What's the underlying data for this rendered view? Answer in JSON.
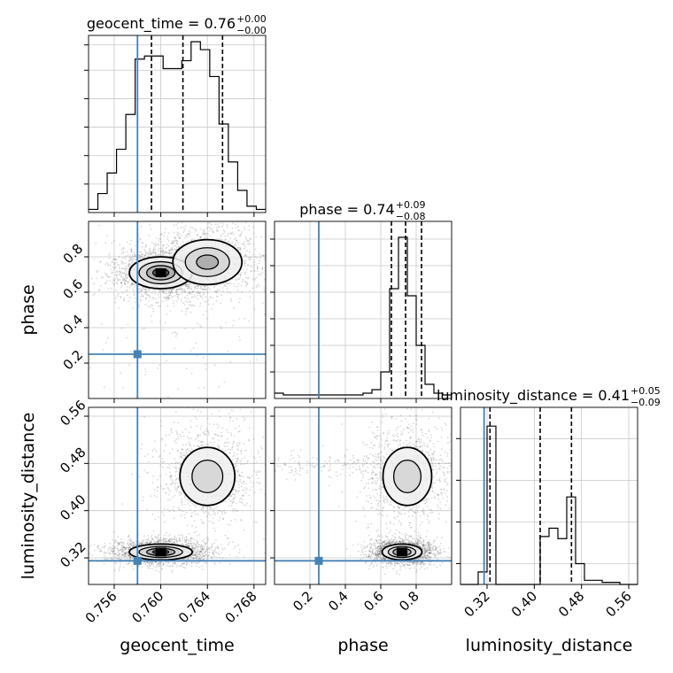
{
  "chart_data": {
    "type": "corner",
    "parameters": [
      "geocent_time",
      "phase",
      "luminosity_distance"
    ],
    "truth": {
      "geocent_time": 0.758,
      "phase": 0.25,
      "luminosity_distance": 0.315
    },
    "truth_color": "#4682b4",
    "diag": [
      {
        "param": "geocent_time",
        "title_main": "geocent_time = 0.76",
        "title_plus": "+0.00",
        "title_minus": "−0.00",
        "xlim": [
          0.7538,
          0.769
        ],
        "bin_edges": [
          0.7538,
          0.7546,
          0.7554,
          0.7562,
          0.757,
          0.7578,
          0.7586,
          0.7594,
          0.7602,
          0.761,
          0.7618,
          0.7626,
          0.7634,
          0.7642,
          0.765,
          0.7658,
          0.7666,
          0.7674,
          0.7682,
          0.769
        ],
        "counts": [
          0.02,
          0.12,
          0.25,
          0.4,
          0.62,
          0.97,
          0.99,
          0.99,
          0.91,
          0.91,
          0.96,
          1.08,
          1.03,
          0.86,
          0.56,
          0.32,
          0.14,
          0.04,
          0.02
        ],
        "quantiles": [
          0.7592,
          0.7619,
          0.7653
        ],
        "ymax": 1.12,
        "yticks": [
          0.18,
          0.36,
          0.54,
          0.72,
          0.9,
          1.06
        ]
      },
      {
        "param": "phase",
        "title_main": "phase = 0.74",
        "title_plus": "+0.09",
        "title_minus": "−0.08",
        "xlim": [
          0.0,
          1.0
        ],
        "bin_edges": [
          0.0,
          0.05,
          0.1,
          0.15,
          0.2,
          0.25,
          0.3,
          0.35,
          0.4,
          0.45,
          0.5,
          0.55,
          0.6,
          0.65,
          0.7,
          0.75,
          0.8,
          0.85,
          0.9,
          0.95,
          1.0
        ],
        "counts": [
          0.03,
          0.02,
          0.02,
          0.02,
          0.02,
          0.02,
          0.02,
          0.02,
          0.02,
          0.02,
          0.03,
          0.05,
          0.15,
          0.62,
          0.91,
          0.58,
          0.3,
          0.08,
          0.03,
          0.02
        ],
        "quantiles": [
          0.66,
          0.74,
          0.83
        ],
        "ymax": 1.0,
        "yticks": [
          0.15,
          0.3,
          0.45,
          0.6,
          0.75,
          0.9
        ]
      },
      {
        "param": "luminosity_distance",
        "title_main": "luminosity_distance = 0.41",
        "title_plus": "+0.05",
        "title_minus": "−0.09",
        "xlim": [
          0.275,
          0.575
        ],
        "bin_edges": [
          0.275,
          0.29,
          0.305,
          0.32,
          0.335,
          0.35,
          0.365,
          0.38,
          0.395,
          0.41,
          0.425,
          0.44,
          0.455,
          0.47,
          0.485,
          0.5,
          0.515,
          0.53,
          0.545,
          0.56,
          0.575
        ],
        "counts": [
          0.0,
          0.0,
          0.06,
          0.76,
          0.0,
          0.0,
          0.0,
          0.0,
          0.0,
          0.23,
          0.27,
          0.22,
          0.42,
          0.1,
          0.02,
          0.02,
          0.01,
          0.01,
          0.0,
          0.0
        ],
        "quantiles": [
          0.325,
          0.41,
          0.463
        ],
        "ymax": 0.85,
        "yticks": [
          0.1,
          0.3,
          0.5,
          0.7
        ]
      }
    ],
    "x_ticks": [
      {
        "values": [
          0.756,
          0.76,
          0.764,
          0.768
        ],
        "labels": [
          "0.756",
          "0.760",
          "0.764",
          "0.768"
        ]
      },
      {
        "values": [
          0.2,
          0.4,
          0.6,
          0.8
        ],
        "labels": [
          "0.2",
          "0.4",
          "0.6",
          "0.8"
        ]
      },
      {
        "values": [
          0.32,
          0.4,
          0.48,
          0.56
        ],
        "labels": [
          "0.32",
          "0.40",
          "0.48",
          "0.56"
        ]
      }
    ],
    "y_ticks": {
      "phase": {
        "values": [
          0.2,
          0.4,
          0.6,
          0.8
        ],
        "labels": [
          "0.2",
          "0.4",
          "0.6",
          "0.8"
        ]
      },
      "luminosity_distance": {
        "values": [
          0.32,
          0.4,
          0.48,
          0.56
        ],
        "labels": [
          "0.32",
          "0.40",
          "0.48",
          "0.56"
        ]
      }
    },
    "axis_labels": {
      "x": [
        "geocent_time",
        "phase",
        "luminosity_distance"
      ],
      "y": [
        "phase",
        "luminosity_distance"
      ]
    },
    "density_blobs": {
      "phase_vs_geocent_time": [
        {
          "cx": 0.76,
          "cy": 0.71,
          "sx": 0.0012,
          "sy": 0.04,
          "w": 1.0
        },
        {
          "cx": 0.764,
          "cy": 0.77,
          "sx": 0.0014,
          "sy": 0.06,
          "w": 0.75
        },
        {
          "cx": 0.762,
          "cy": 0.4,
          "sx": 0.0025,
          "sy": 0.22,
          "w": 0.12
        }
      ],
      "luminosity_distance_vs_geocent_time": [
        {
          "cx": 0.76,
          "cy": 0.33,
          "sx": 0.0012,
          "sy": 0.006,
          "w": 1.0
        },
        {
          "cx": 0.764,
          "cy": 0.458,
          "sx": 0.0012,
          "sy": 0.025,
          "w": 0.55
        }
      ],
      "luminosity_distance_vs_phase": [
        {
          "cx": 0.72,
          "cy": 0.33,
          "sx": 0.05,
          "sy": 0.006,
          "w": 1.0
        },
        {
          "cx": 0.75,
          "cy": 0.458,
          "sx": 0.07,
          "sy": 0.025,
          "w": 0.55
        },
        {
          "cx": 0.35,
          "cy": 0.475,
          "sx": 0.22,
          "sy": 0.006,
          "w": 0.12
        }
      ]
    },
    "grid": true
  }
}
